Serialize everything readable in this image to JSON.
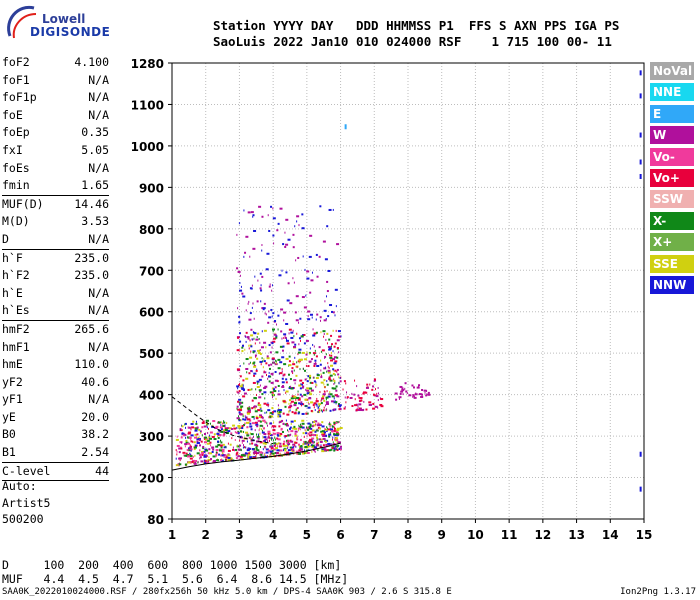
{
  "logo": {
    "line1": "Lowell",
    "line2": "DIGISONDE"
  },
  "header": {
    "line1": "Station YYYY DAY   DDD HHMMSS P1  FFS S AXN PPS IGA PS",
    "line2": "SaoLuis 2022 Jan10 010 024000 RSF    1 715 100 00- 11"
  },
  "params": [
    {
      "name": "foF2",
      "value": "4.100"
    },
    {
      "name": "foF1",
      "value": "N/A"
    },
    {
      "name": "foF1p",
      "value": "N/A"
    },
    {
      "name": "foE",
      "value": "N/A"
    },
    {
      "name": "foEp",
      "value": "0.35"
    },
    {
      "name": "fxI",
      "value": "5.05"
    },
    {
      "name": "foEs",
      "value": "N/A"
    },
    {
      "name": "fmin",
      "value": "1.65",
      "sep": true
    },
    {
      "name": "MUF(D)",
      "value": "14.46"
    },
    {
      "name": "M(D)",
      "value": "3.53"
    },
    {
      "name": "D",
      "value": "N/A",
      "sep": true
    },
    {
      "name": "h`F",
      "value": "235.0"
    },
    {
      "name": "h`F2",
      "value": "235.0"
    },
    {
      "name": "h`E",
      "value": "N/A"
    },
    {
      "name": "h`Es",
      "value": "N/A",
      "sep": true
    },
    {
      "name": "hmF2",
      "value": "265.6"
    },
    {
      "name": "hmF1",
      "value": "N/A"
    },
    {
      "name": "hmE",
      "value": "110.0"
    },
    {
      "name": "yF2",
      "value": "40.6"
    },
    {
      "name": "yF1",
      "value": "N/A"
    },
    {
      "name": "yE",
      "value": "20.0"
    },
    {
      "name": "B0",
      "value": "38.2"
    },
    {
      "name": "B1",
      "value": "2.54",
      "sep": true
    },
    {
      "name": "C-level",
      "value": "44",
      "sep": true
    }
  ],
  "auto": {
    "line1": "Auto:",
    "line2": "Artist5",
    "line3": "500200"
  },
  "legend": [
    {
      "label": "NoVal",
      "color": "#a8a8a8"
    },
    {
      "label": "NNE",
      "color": "#18d8f0"
    },
    {
      "label": "E",
      "color": "#30a8f8"
    },
    {
      "label": "W",
      "color": "#b0109c"
    },
    {
      "label": "Vo-",
      "color": "#f03a9c"
    },
    {
      "label": "Vo+",
      "color": "#e8003c"
    },
    {
      "label": "SSW",
      "color": "#f0b0b0"
    },
    {
      "label": "X-",
      "color": "#108818"
    },
    {
      "label": "X+",
      "color": "#70b048"
    },
    {
      "label": "SSE",
      "color": "#d0d010"
    },
    {
      "label": "NNW",
      "color": "#1818d8"
    }
  ],
  "bottom": {
    "d_row": "D     100  200  400  600  800 1000 1500 3000 [km]",
    "muf_row": "MUF   4.4  4.5  4.7  5.1  5.6  6.4  8.6 14.5 [MHz]"
  },
  "footer": {
    "left": "SAA0K_2022010024000.RSF / 280fx256h 50 kHz 5.0 km / DPS-4 SAA0K 903 / 2.6 S 315.8 E",
    "right": "Ion2Png 1.3.17"
  },
  "chart_data": {
    "type": "scatter",
    "xlabel": "",
    "ylabel": "",
    "xlim": [
      1,
      15
    ],
    "ylim": [
      80,
      1280
    ],
    "xticks": [
      1,
      2,
      3,
      4,
      5,
      6,
      7,
      8,
      9,
      10,
      11,
      12,
      13,
      14,
      15
    ],
    "yticks": [
      80,
      200,
      300,
      400,
      500,
      600,
      700,
      800,
      900,
      1000,
      1100,
      1280
    ],
    "grid": true,
    "clusters": [
      {
        "name": "main F-trace",
        "x_range": [
          1.1,
          6.0
        ],
        "y_range": [
          230,
          340
        ],
        "colors": [
          "#1818d8",
          "#b0109c",
          "#e8003c",
          "#108818",
          "#d0d010",
          "#f03a9c"
        ],
        "density": 900
      },
      {
        "name": "upper spread",
        "x_range": [
          2.9,
          6.0
        ],
        "y_range": [
          340,
          560
        ],
        "colors": [
          "#b0109c",
          "#e8003c",
          "#d0d010",
          "#108818",
          "#1818d8"
        ],
        "density": 650
      },
      {
        "name": "high spread",
        "x_range": [
          2.9,
          5.9
        ],
        "y_range": [
          560,
          860
        ],
        "colors": [
          "#b0109c",
          "#1818d8"
        ],
        "density": 160
      },
      {
        "name": "tail 6-7",
        "x_range": [
          6.0,
          7.2
        ],
        "y_range": [
          360,
          440
        ],
        "colors": [
          "#b0109c",
          "#e8003c"
        ],
        "density": 70
      },
      {
        "name": "tail 7.6-8.6",
        "x_range": [
          7.6,
          8.6
        ],
        "y_range": [
          390,
          430
        ],
        "colors": [
          "#b0109c"
        ],
        "density": 40
      }
    ],
    "points": [
      {
        "x": 6.15,
        "y": 1045,
        "color": "#30a8f8"
      },
      {
        "x": 14.9,
        "y": 1235,
        "color": "#1818d8"
      },
      {
        "x": 14.9,
        "y": 1135,
        "color": "#1818d8"
      },
      {
        "x": 14.9,
        "y": 1025,
        "color": "#1818d8"
      },
      {
        "x": 14.9,
        "y": 960,
        "color": "#1818d8"
      },
      {
        "x": 14.9,
        "y": 925,
        "color": "#1818d8"
      },
      {
        "x": 14.9,
        "y": 255,
        "color": "#1818d8"
      },
      {
        "x": 14.9,
        "y": 165,
        "color": "#1818d8"
      }
    ],
    "curves": [
      {
        "name": "profile",
        "points": [
          [
            1.0,
            218
          ],
          [
            1.5,
            226
          ],
          [
            2.0,
            233
          ],
          [
            2.5,
            238
          ],
          [
            3.0,
            242
          ],
          [
            3.5,
            247
          ],
          [
            4.0,
            251
          ],
          [
            4.5,
            257
          ],
          [
            5.0,
            264
          ],
          [
            5.5,
            273
          ],
          [
            6.0,
            283
          ]
        ]
      },
      {
        "name": "trace-fit",
        "dashed": true,
        "points": [
          [
            1.0,
            395
          ],
          [
            1.4,
            370
          ],
          [
            1.8,
            345
          ],
          [
            2.3,
            318
          ],
          [
            2.8,
            302
          ],
          [
            3.4,
            290
          ],
          [
            4.0,
            282
          ]
        ]
      }
    ]
  }
}
